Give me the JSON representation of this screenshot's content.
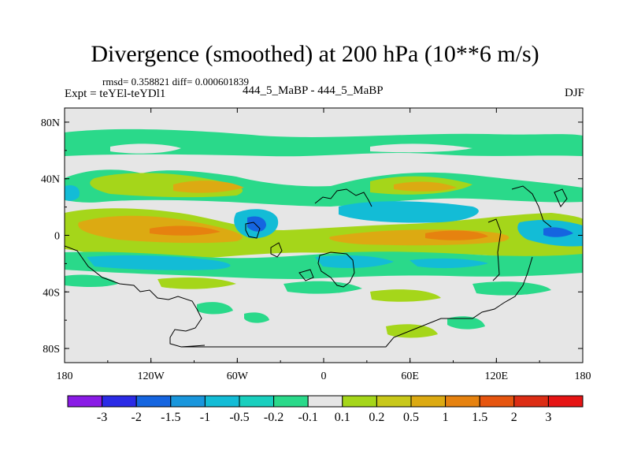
{
  "header": {
    "title": "Divergence (smoothed) at 200 hPa (10**6 m/s)",
    "stats": "rmsd= 0.358821 diff= 0.000601839",
    "expt": "Expt = teYEl-teYDl1",
    "case": "444_5_MaBP - 444_5_MaBP",
    "season": "DJF"
  },
  "axes": {
    "lat_ticks": [
      "80N",
      "40N",
      "0",
      "40S",
      "80S"
    ],
    "lon_ticks": [
      "180",
      "120W",
      "60W",
      "0",
      "60E",
      "120E",
      "180"
    ]
  },
  "colorbar": {
    "labels": [
      "-3",
      "-2",
      "-1.5",
      "-1",
      "-0.5",
      "-0.2",
      "-0.1",
      "0.1",
      "0.2",
      "0.5",
      "1",
      "1.5",
      "2",
      "3"
    ],
    "colors": [
      "#8a1be6",
      "#2b2be6",
      "#1565e0",
      "#1996dc",
      "#13bcd6",
      "#19cfbe",
      "#2ad98a",
      "#e6e6e6",
      "#a5d61a",
      "#c8c81a",
      "#dcaa12",
      "#e6820f",
      "#e6550f",
      "#dc2d14",
      "#e61414"
    ]
  },
  "colors": {
    "neg_strong": "#1565e0",
    "neg_mid": "#13bcd6",
    "neg_weak": "#2ad98a",
    "neutral": "#e6e6e6",
    "pos_weak": "#a5d61a",
    "pos_mid": "#dcaa12",
    "pos_strong": "#e6820f"
  }
}
